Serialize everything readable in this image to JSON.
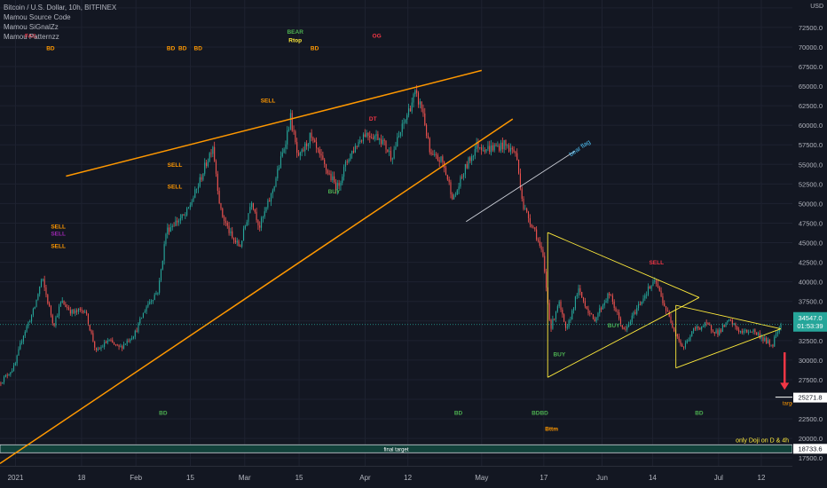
{
  "header": {
    "symbol": "Bitcoin / U.S. Dollar, 10h, BITFINEX",
    "indicators": [
      "Mamou Source Code",
      "Mamou SiGnalZz",
      "Mamou Patternzz"
    ],
    "currency": "USD"
  },
  "price_labels": {
    "last_price": "34547.0",
    "countdown": "01:53:39",
    "target_price": "25271.8",
    "final_target_price": "18733.6"
  },
  "annotations": {
    "target": "target",
    "final_target": "final target",
    "doji_note": "only Doji on D & 4h",
    "bear_flag": "bear flag"
  },
  "signals": [
    {
      "text": "FAIL",
      "x": "2021-01-05",
      "y": 71200,
      "color": "#f23645"
    },
    {
      "text": "BD",
      "x": "2021-01-10",
      "y": 69600,
      "color": "#ff9800"
    },
    {
      "text": "SELL",
      "x": "2021-01-12",
      "y": 46800,
      "color": "#ff9800"
    },
    {
      "text": "SELL",
      "x": "2021-01-12",
      "y": 45900,
      "color": "#9c27b0"
    },
    {
      "text": "SELL",
      "x": "2021-01-12",
      "y": 44300,
      "color": "#ff9800"
    },
    {
      "text": "BD",
      "x": "2021-02-10",
      "y": 69600,
      "color": "#ff9800"
    },
    {
      "text": "BD",
      "x": "2021-02-13",
      "y": 69600,
      "color": "#ff9800"
    },
    {
      "text": "BD",
      "x": "2021-02-17",
      "y": 69600,
      "color": "#ff9800"
    },
    {
      "text": "SELL",
      "x": "2021-02-11",
      "y": 54700,
      "color": "#ff9800"
    },
    {
      "text": "SELL",
      "x": "2021-02-11",
      "y": 51900,
      "color": "#ff9800"
    },
    {
      "text": "SELL",
      "x": "2021-03-07",
      "y": 62900,
      "color": "#ff9800"
    },
    {
      "text": "BEAR",
      "x": "2021-03-14",
      "y": 71700,
      "color": "#4caf50"
    },
    {
      "text": "Rtop",
      "x": "2021-03-14",
      "y": 70600,
      "color": "#ffeb3b"
    },
    {
      "text": "BD",
      "x": "2021-03-19",
      "y": 69600,
      "color": "#ff9800"
    },
    {
      "text": "BUY",
      "x": "2021-03-24",
      "y": 51300,
      "color": "#4caf50"
    },
    {
      "text": "OG",
      "x": "2021-04-04",
      "y": 71200,
      "color": "#f23645"
    },
    {
      "text": "DT",
      "x": "2021-04-03",
      "y": 60600,
      "color": "#f23645"
    },
    {
      "text": "BUY",
      "x": "2021-05-21",
      "y": 30500,
      "color": "#4caf50"
    },
    {
      "text": "BUY",
      "x": "2021-06-04",
      "y": 34200,
      "color": "#4caf50"
    },
    {
      "text": "SELL",
      "x": "2021-06-15",
      "y": 42200,
      "color": "#f23645"
    },
    {
      "text": "BD",
      "x": "2021-02-08",
      "y": 23000,
      "color": "#4caf50"
    },
    {
      "text": "BD",
      "x": "2021-04-25",
      "y": 23000,
      "color": "#4caf50"
    },
    {
      "text": "BDBD",
      "x": "2021-05-16",
      "y": 23000,
      "color": "#4caf50"
    },
    {
      "text": "Bttm",
      "x": "2021-05-19",
      "y": 21000,
      "color": "#ff9800"
    },
    {
      "text": "BD",
      "x": "2021-06-26",
      "y": 23000,
      "color": "#4caf50"
    }
  ],
  "chart_data": {
    "type": "candlestick",
    "symbol": "Bitcoin / U.S. Dollar",
    "timeframe": "10h",
    "exchange": "BITFINEX",
    "x_range": [
      "2020-12-28",
      "2021-07-20"
    ],
    "ylim": [
      16500,
      76000
    ],
    "y_ticks": [
      17500,
      20000,
      22500,
      25000,
      27500,
      30000,
      32500,
      35000,
      37500,
      40000,
      42500,
      45000,
      47500,
      50000,
      52500,
      55000,
      57500,
      60000,
      62500,
      65000,
      67500,
      70000,
      72500,
      75000
    ],
    "x_tick_labels": [
      {
        "label": "2021",
        "x": "2021-01-01"
      },
      {
        "label": "18",
        "x": "2021-01-18"
      },
      {
        "label": "Feb",
        "x": "2021-02-01"
      },
      {
        "label": "15",
        "x": "2021-02-15"
      },
      {
        "label": "Mar",
        "x": "2021-03-01"
      },
      {
        "label": "15",
        "x": "2021-03-15"
      },
      {
        "label": "Apr",
        "x": "2021-04-01"
      },
      {
        "label": "12",
        "x": "2021-04-12"
      },
      {
        "label": "May",
        "x": "2021-05-01"
      },
      {
        "label": "17",
        "x": "2021-05-17"
      },
      {
        "label": "Jun",
        "x": "2021-06-01"
      },
      {
        "label": "14",
        "x": "2021-06-14"
      },
      {
        "label": "Jul",
        "x": "2021-07-01"
      },
      {
        "label": "12",
        "x": "2021-07-12"
      }
    ],
    "price_path": [
      [
        "2020-12-28",
        27000
      ],
      [
        "2021-01-01",
        29200
      ],
      [
        "2021-01-03",
        33000
      ],
      [
        "2021-01-06",
        36500
      ],
      [
        "2021-01-08",
        40500
      ],
      [
        "2021-01-11",
        34500
      ],
      [
        "2021-01-13",
        37500
      ],
      [
        "2021-01-16",
        36000
      ],
      [
        "2021-01-19",
        36500
      ],
      [
        "2021-01-22",
        31000
      ],
      [
        "2021-01-25",
        32500
      ],
      [
        "2021-01-28",
        31500
      ],
      [
        "2021-02-01",
        33500
      ],
      [
        "2021-02-04",
        37000
      ],
      [
        "2021-02-07",
        39000
      ],
      [
        "2021-02-09",
        46500
      ],
      [
        "2021-02-11",
        47500
      ],
      [
        "2021-02-14",
        48500
      ],
      [
        "2021-02-17",
        52000
      ],
      [
        "2021-02-21",
        57500
      ],
      [
        "2021-02-23",
        49000
      ],
      [
        "2021-02-26",
        45500
      ],
      [
        "2021-02-28",
        44500
      ],
      [
        "2021-03-03",
        50500
      ],
      [
        "2021-03-05",
        47000
      ],
      [
        "2021-03-08",
        51000
      ],
      [
        "2021-03-11",
        56500
      ],
      [
        "2021-03-13",
        61000
      ],
      [
        "2021-03-15",
        55500
      ],
      [
        "2021-03-18",
        58500
      ],
      [
        "2021-03-22",
        54500
      ],
      [
        "2021-03-25",
        52000
      ],
      [
        "2021-03-28",
        56000
      ],
      [
        "2021-04-01",
        59000
      ],
      [
        "2021-04-05",
        58500
      ],
      [
        "2021-04-08",
        56000
      ],
      [
        "2021-04-11",
        60000
      ],
      [
        "2021-04-14",
        64000
      ],
      [
        "2021-04-16",
        62000
      ],
      [
        "2021-04-18",
        56000
      ],
      [
        "2021-04-21",
        55500
      ],
      [
        "2021-04-24",
        50500
      ],
      [
        "2021-04-27",
        54500
      ],
      [
        "2021-04-30",
        57500
      ],
      [
        "2021-05-03",
        57000
      ],
      [
        "2021-05-07",
        57500
      ],
      [
        "2021-05-10",
        56500
      ],
      [
        "2021-05-12",
        49500
      ],
      [
        "2021-05-15",
        46500
      ],
      [
        "2021-05-17",
        43000
      ],
      [
        "2021-05-19",
        34000
      ],
      [
        "2021-05-21",
        37500
      ],
      [
        "2021-05-23",
        33500
      ],
      [
        "2021-05-26",
        39000
      ],
      [
        "2021-05-30",
        35000
      ],
      [
        "2021-06-03",
        38500
      ],
      [
        "2021-06-07",
        33500
      ],
      [
        "2021-06-10",
        36500
      ],
      [
        "2021-06-13",
        39000
      ],
      [
        "2021-06-15",
        40000
      ],
      [
        "2021-06-18",
        36000
      ],
      [
        "2021-06-22",
        31500
      ],
      [
        "2021-06-25",
        34000
      ],
      [
        "2021-06-28",
        34500
      ],
      [
        "2021-07-01",
        33500
      ],
      [
        "2021-07-04",
        35000
      ],
      [
        "2021-07-07",
        33500
      ],
      [
        "2021-07-10",
        33800
      ],
      [
        "2021-07-12",
        33000
      ],
      [
        "2021-07-15",
        31800
      ],
      [
        "2021-07-16",
        33500
      ],
      [
        "2021-07-17",
        34547
      ]
    ],
    "last_price": 34547.0,
    "horizontal_levels": [
      {
        "value": 25271.8,
        "color": "#ffffff",
        "from": "2021-07-17"
      },
      {
        "value": 18733.6,
        "color": "#ffffff",
        "from": "2020-12-28"
      }
    ],
    "trendlines": [
      {
        "points": [
          [
            "2021-01-14",
            53500
          ],
          [
            "2021-05-01",
            67000
          ]
        ],
        "color": "#ff9800"
      },
      {
        "points": [
          [
            "2020-12-28",
            16800
          ],
          [
            "2021-05-09",
            60800
          ]
        ],
        "color": "#ff9800"
      },
      {
        "points": [
          [
            "2021-04-27",
            47700
          ],
          [
            "2021-05-25",
            56700
          ]
        ],
        "color": "#d1d4dc"
      },
      {
        "points": [
          [
            "2021-05-18",
            46300
          ],
          [
            "2021-06-26",
            38000
          ]
        ],
        "color": "#ffeb3b"
      },
      {
        "points": [
          [
            "2021-05-18",
            46300
          ],
          [
            "2021-05-18",
            27800
          ]
        ],
        "color": "#ffeb3b"
      },
      {
        "points": [
          [
            "2021-05-18",
            27800
          ],
          [
            "2021-06-26",
            38000
          ]
        ],
        "color": "#ffeb3b"
      },
      {
        "points": [
          [
            "2021-06-20",
            37000
          ],
          [
            "2021-07-17",
            34000
          ]
        ],
        "color": "#ffeb3b"
      },
      {
        "points": [
          [
            "2021-06-20",
            37000
          ],
          [
            "2021-06-20",
            29000
          ]
        ],
        "color": "#ffeb3b"
      },
      {
        "points": [
          [
            "2021-06-20",
            29000
          ],
          [
            "2021-07-17",
            34000
          ]
        ],
        "color": "#ffeb3b"
      }
    ],
    "target_arrow": {
      "x": "2021-07-18",
      "from": 31000,
      "to": 26200,
      "color": "#f23645"
    },
    "colors": {
      "up": "#26a69a",
      "down": "#ef5350",
      "background": "#131722",
      "grid": "#1e2230",
      "axis_text": "#b2b5be",
      "band": "#12423b"
    }
  }
}
